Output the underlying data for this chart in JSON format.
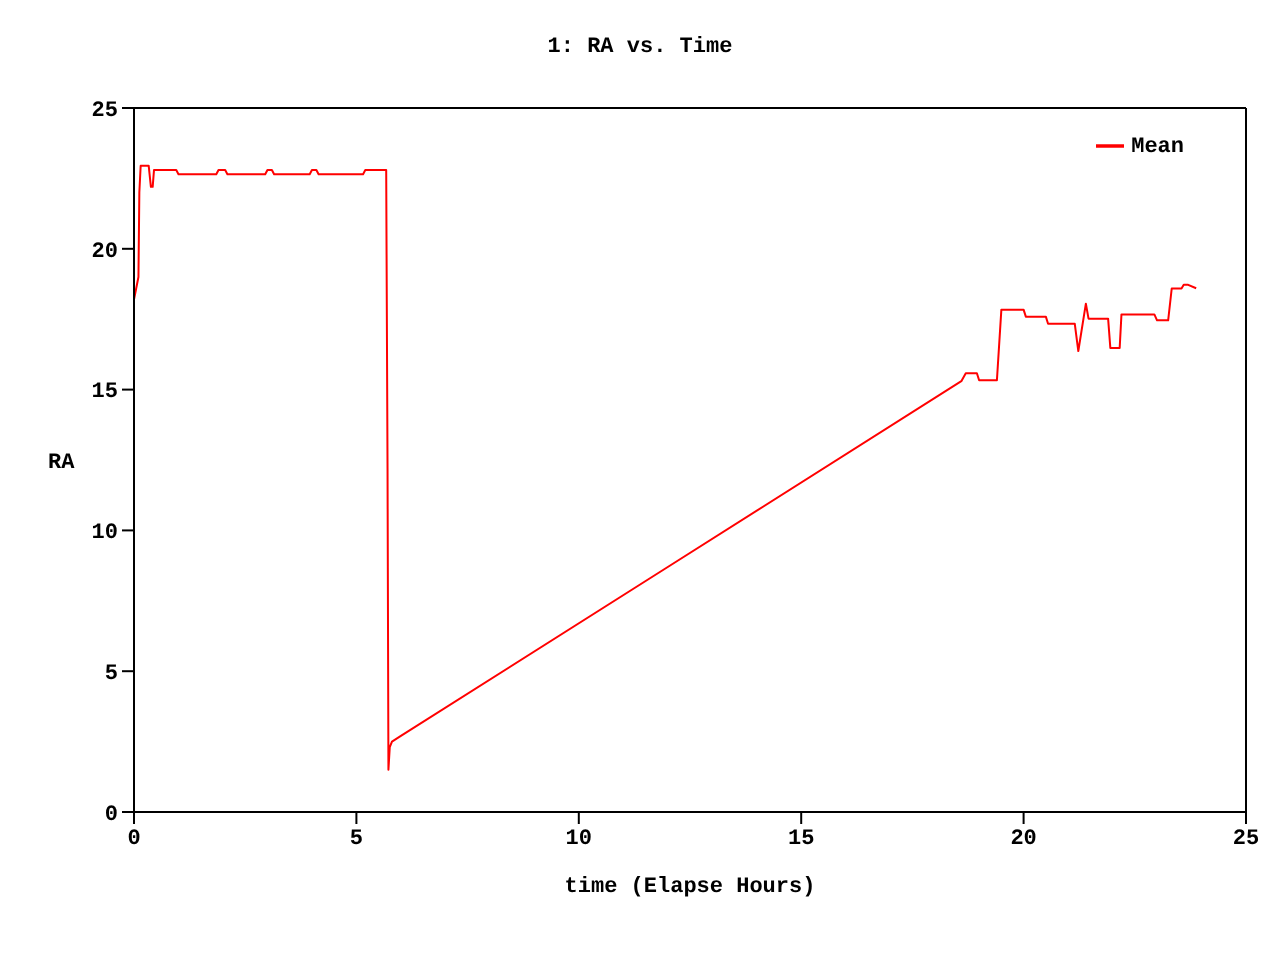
{
  "chart_data": {
    "type": "line",
    "title": "1: RA vs. Time",
    "xlabel": "time (Elapse Hours)",
    "ylabel": "RA",
    "xlim": [
      0,
      25
    ],
    "xticks": [
      0,
      5,
      10,
      15,
      20,
      25
    ],
    "ylim": [
      0,
      25
    ],
    "yticks": [
      0,
      5,
      10,
      15,
      20,
      25
    ],
    "legend": "top right",
    "marker": "none",
    "line_style": "solid",
    "series": [
      {
        "name": "Mean",
        "color": "#ff0000",
        "x": [
          0,
          0.05,
          0.1,
          0.12,
          0.15,
          0.33,
          0.38,
          0.42,
          0.45,
          0.95,
          1.0,
          1.85,
          1.9,
          2.05,
          2.1,
          2.95,
          3.0,
          3.1,
          3.15,
          3.95,
          4.0,
          4.1,
          4.15,
          5.15,
          5.2,
          5.67,
          5.7,
          5.72,
          5.75,
          5.8,
          6.0,
          12.0,
          18.6,
          18.7,
          18.95,
          19.0,
          19.4,
          19.5,
          20.0,
          20.05,
          20.5,
          20.55,
          21.15,
          21.23,
          21.4,
          21.46,
          21.9,
          21.95,
          22.16,
          22.2,
          22.94,
          23.0,
          23.25,
          23.33,
          23.55,
          23.6,
          23.7,
          23.88
        ],
        "values": [
          18.2,
          18.6,
          19,
          22,
          22.95,
          22.95,
          22.2,
          22.2,
          22.8,
          22.8,
          22.65,
          22.65,
          22.8,
          22.8,
          22.65,
          22.65,
          22.8,
          22.8,
          22.65,
          22.65,
          22.8,
          22.8,
          22.65,
          22.65,
          22.8,
          22.8,
          12.2,
          1.5,
          2.3,
          2.5,
          2.7,
          8.7,
          15.3,
          15.58,
          15.58,
          15.33,
          15.33,
          17.84,
          17.84,
          17.59,
          17.59,
          17.34,
          17.34,
          16.37,
          18.05,
          17.52,
          17.52,
          16.48,
          16.48,
          17.67,
          17.67,
          17.46,
          17.46,
          18.59,
          18.59,
          18.72,
          18.72,
          18.6
        ]
      }
    ]
  }
}
